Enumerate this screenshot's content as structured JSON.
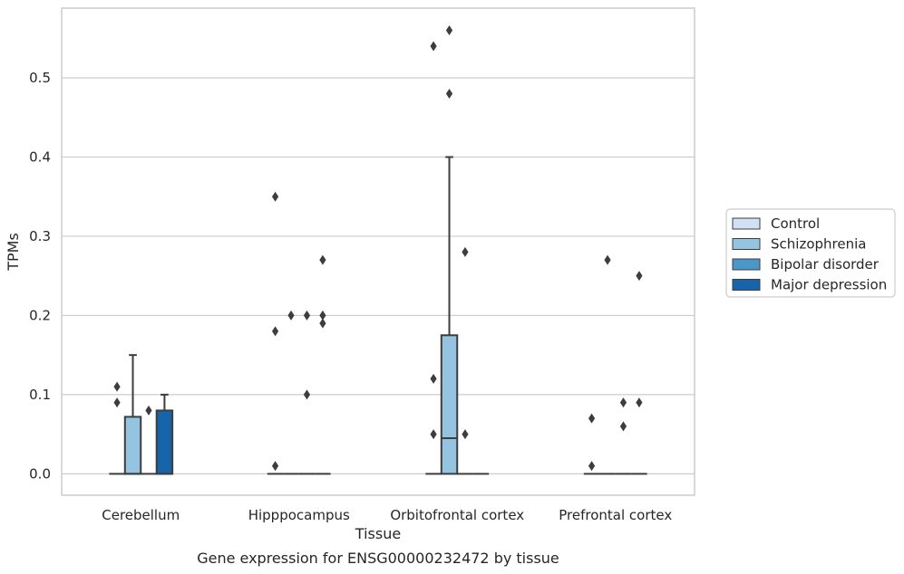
{
  "chart_data": {
    "type": "boxplot",
    "caption": "Gene expression for ENSG00000232472 by tissue",
    "xlabel": "Tissue",
    "ylabel": "TPMs",
    "ylim": [
      -0.027,
      0.588
    ],
    "yticks": [
      0.0,
      0.1,
      0.2,
      0.3,
      0.4,
      0.5
    ],
    "ytick_labels": [
      "0.0",
      "0.1",
      "0.2",
      "0.3",
      "0.4",
      "0.5"
    ],
    "grid": "horizontal",
    "legend_position": "right",
    "categories": [
      "Cerebellum",
      "Hipppocampus",
      "Orbitofrontal cortex",
      "Prefrontal cortex"
    ],
    "series": [
      {
        "name": "Control",
        "color": "#d0e1f2",
        "boxes": [
          {
            "q1": 0,
            "median": 0,
            "q3": 0,
            "whislo": 0,
            "whishi": 0,
            "fliers": [
              0.09,
              0.11
            ]
          },
          {
            "q1": 0,
            "median": 0,
            "q3": 0,
            "whislo": 0,
            "whishi": 0,
            "fliers": [
              0.01,
              0.18,
              0.35
            ]
          },
          {
            "q1": 0,
            "median": 0,
            "q3": 0,
            "whislo": 0,
            "whishi": 0,
            "fliers": [
              0.05,
              0.12,
              0.54
            ]
          },
          {
            "q1": 0,
            "median": 0,
            "q3": 0,
            "whislo": 0,
            "whishi": 0,
            "fliers": [
              0.01,
              0.07
            ]
          }
        ]
      },
      {
        "name": "Schizophrenia",
        "color": "#94c4df",
        "boxes": [
          {
            "q1": 0,
            "median": 0,
            "q3": 0.072,
            "whislo": 0,
            "whishi": 0.15,
            "fliers": []
          },
          {
            "q1": 0,
            "median": 0,
            "q3": 0,
            "whislo": 0,
            "whishi": 0,
            "fliers": [
              0.2
            ]
          },
          {
            "q1": 0,
            "median": 0.045,
            "q3": 0.175,
            "whislo": 0,
            "whishi": 0.4,
            "fliers": [
              0.48,
              0.56
            ]
          },
          {
            "q1": 0,
            "median": 0,
            "q3": 0,
            "whislo": 0,
            "whishi": 0,
            "fliers": [
              0.27
            ]
          }
        ]
      },
      {
        "name": "Bipolar disorder",
        "color": "#4a98c9",
        "boxes": [
          {
            "q1": 0,
            "median": 0,
            "q3": 0,
            "whislo": 0,
            "whishi": 0,
            "fliers": [
              0.08
            ]
          },
          {
            "q1": 0,
            "median": 0,
            "q3": 0,
            "whislo": 0,
            "whishi": 0,
            "fliers": [
              0.1,
              0.2
            ]
          },
          {
            "q1": 0,
            "median": 0,
            "q3": 0,
            "whislo": 0,
            "whishi": 0,
            "fliers": [
              0.05,
              0.28
            ]
          },
          {
            "q1": 0,
            "median": 0,
            "q3": 0,
            "whislo": 0,
            "whishi": 0,
            "fliers": [
              0.06,
              0.09
            ]
          }
        ]
      },
      {
        "name": "Major depression",
        "color": "#1764ab",
        "boxes": [
          {
            "q1": 0,
            "median": 0,
            "q3": 0.08,
            "whislo": 0,
            "whishi": 0.1,
            "fliers": []
          },
          {
            "q1": 0,
            "median": 0,
            "q3": 0,
            "whislo": 0,
            "whishi": 0,
            "fliers": [
              0.19,
              0.2,
              0.27
            ]
          },
          {
            "q1": 0,
            "median": 0,
            "q3": 0,
            "whislo": 0,
            "whishi": 0,
            "fliers": []
          },
          {
            "q1": 0,
            "median": 0,
            "q3": 0,
            "whislo": 0,
            "whishi": 0,
            "fliers": [
              0.09,
              0.25
            ]
          }
        ]
      }
    ],
    "style": {
      "frame_color": "#cccccc",
      "grid_color": "#cccccc",
      "box_edge_color": "#3d3d3d",
      "text_color": "#262626"
    }
  }
}
